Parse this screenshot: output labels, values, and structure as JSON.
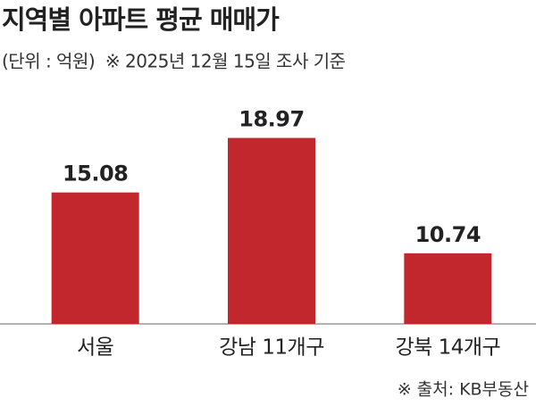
{
  "chart_data": {
    "type": "bar",
    "title": "지역별 아파트 평균 매매가",
    "subtitle": "(단위 : 억원)  ※ 2025년 12월 15일 조사 기준",
    "categories": [
      "서울",
      "강남 11개구",
      "강북 14개구"
    ],
    "values": [
      15.08,
      18.97,
      10.74
    ],
    "color": "#c1272d",
    "ylim": [
      5.7,
      22
    ],
    "source": "※ 출처: KB부동산"
  }
}
